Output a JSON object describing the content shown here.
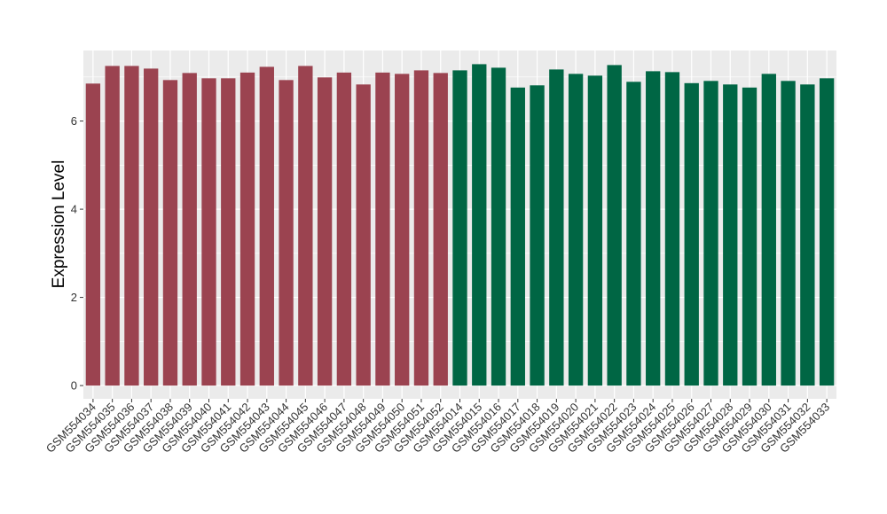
{
  "chart_data": {
    "type": "bar",
    "title": "",
    "xlabel": "",
    "ylabel": "Expression Level",
    "ylim": [
      -0.3,
      7.6
    ],
    "yticks": [
      0,
      2,
      4,
      6
    ],
    "grid": true,
    "legend": "none",
    "categories": [
      "GSM554034",
      "GSM554035",
      "GSM554036",
      "GSM554037",
      "GSM554038",
      "GSM554039",
      "GSM554040",
      "GSM554041",
      "GSM554042",
      "GSM554043",
      "GSM554044",
      "GSM554045",
      "GSM554046",
      "GSM554047",
      "GSM554048",
      "GSM554049",
      "GSM554050",
      "GSM554051",
      "GSM554052",
      "GSM554014",
      "GSM554015",
      "GSM554016",
      "GSM554017",
      "GSM554018",
      "GSM554019",
      "GSM554020",
      "GSM554021",
      "GSM554022",
      "GSM554023",
      "GSM554024",
      "GSM554025",
      "GSM554026",
      "GSM554027",
      "GSM554028",
      "GSM554029",
      "GSM554030",
      "GSM554031",
      "GSM554032",
      "GSM554033"
    ],
    "values": [
      6.85,
      7.25,
      7.25,
      7.19,
      6.93,
      7.09,
      6.97,
      6.97,
      7.1,
      7.23,
      6.93,
      7.25,
      6.99,
      7.1,
      6.83,
      7.1,
      7.07,
      7.15,
      7.09,
      7.15,
      7.29,
      7.21,
      6.76,
      6.81,
      7.17,
      7.07,
      7.03,
      7.27,
      6.89,
      7.13,
      7.11,
      6.86,
      6.91,
      6.83,
      6.76,
      7.07,
      6.91,
      6.83,
      6.97
    ],
    "groups": [
      0,
      0,
      0,
      0,
      0,
      0,
      0,
      0,
      0,
      0,
      0,
      0,
      0,
      0,
      0,
      0,
      0,
      0,
      0,
      1,
      1,
      1,
      1,
      1,
      1,
      1,
      1,
      1,
      1,
      1,
      1,
      1,
      1,
      1,
      1,
      1,
      1,
      1,
      1
    ],
    "colors": [
      "#9b4350",
      "#006644"
    ],
    "panel_color": "#ebebeb",
    "grid_color": "#ffffff"
  }
}
